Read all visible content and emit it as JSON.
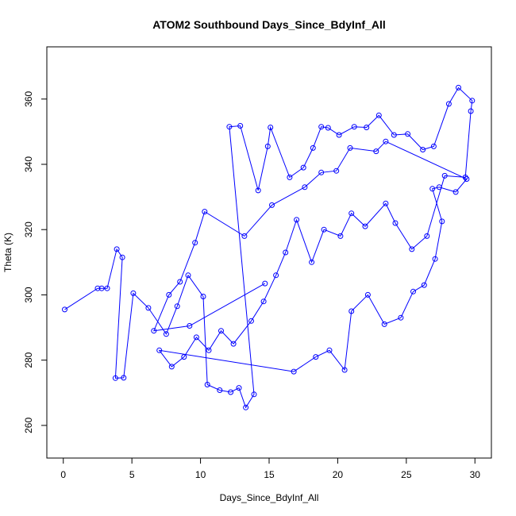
{
  "chart_data": {
    "type": "line",
    "title": "ATOM2 Southbound Days_Since_BdyInf_All",
    "xlabel": "Days_Since_BdyInf_All",
    "ylabel": "Theta (K)",
    "xlim": [
      -1.2,
      31.2
    ],
    "ylim": [
      250,
      376
    ],
    "xticks": [
      0,
      5,
      10,
      15,
      20,
      25,
      30
    ],
    "yticks": [
      260,
      280,
      300,
      320,
      340,
      360
    ],
    "grid": false,
    "legend": "none",
    "color": "#0000ff",
    "marker": "open-circle",
    "line": true,
    "sample_points": [
      [
        0.1,
        295.5
      ],
      [
        2.5,
        302
      ],
      [
        2.8,
        302
      ],
      [
        3.2,
        302
      ],
      [
        3.9,
        314
      ],
      [
        4.3,
        311.5
      ],
      [
        3.8,
        274.5
      ],
      [
        4.4,
        274.6
      ],
      [
        5.1,
        300.5
      ],
      [
        6.2,
        296
      ],
      [
        7.5,
        288
      ],
      [
        8.3,
        296.5
      ],
      [
        9.1,
        306
      ],
      [
        10.2,
        299.5
      ],
      [
        10.5,
        272.5
      ],
      [
        11.4,
        270.8
      ],
      [
        12.2,
        270.2
      ],
      [
        12.8,
        271.5
      ],
      [
        13.3,
        265.5
      ],
      [
        13.9,
        269.5
      ],
      [
        12.1,
        351.5
      ],
      [
        12.9,
        351.8
      ],
      [
        14.2,
        332
      ],
      [
        14.9,
        345.5
      ],
      [
        15.1,
        351.3
      ],
      [
        16.5,
        336
      ],
      [
        17.5,
        339
      ],
      [
        18.2,
        345
      ],
      [
        18.8,
        351.5
      ],
      [
        19.3,
        351.2
      ],
      [
        20.1,
        349
      ],
      [
        21.2,
        351.5
      ],
      [
        22.1,
        351.3
      ],
      [
        23.0,
        355
      ],
      [
        24.1,
        349
      ],
      [
        25.1,
        349.3
      ],
      [
        26.2,
        344.5
      ],
      [
        27.0,
        345.5
      ],
      [
        28.1,
        358.5
      ],
      [
        28.8,
        363.5
      ],
      [
        29.8,
        359.5
      ],
      [
        29.7,
        356.3
      ],
      [
        29.3,
        336
      ],
      [
        27.8,
        336.5
      ],
      [
        26.5,
        318
      ],
      [
        25.4,
        314
      ],
      [
        24.2,
        322
      ],
      [
        23.5,
        328
      ],
      [
        22.0,
        321
      ],
      [
        21.0,
        325
      ],
      [
        20.2,
        318
      ],
      [
        19.0,
        320
      ],
      [
        18.1,
        310
      ],
      [
        17.0,
        323
      ],
      [
        16.2,
        313
      ],
      [
        15.5,
        306
      ],
      [
        14.6,
        298
      ],
      [
        13.7,
        292
      ],
      [
        12.4,
        285
      ],
      [
        11.5,
        289
      ],
      [
        10.6,
        283
      ],
      [
        9.7,
        287
      ],
      [
        8.8,
        281
      ],
      [
        7.9,
        278
      ],
      [
        7.0,
        283
      ],
      [
        16.8,
        276.5
      ],
      [
        18.4,
        281
      ],
      [
        19.4,
        283
      ],
      [
        20.5,
        277
      ],
      [
        21.0,
        295
      ],
      [
        22.2,
        300
      ],
      [
        23.4,
        291
      ],
      [
        24.6,
        293
      ],
      [
        25.5,
        301
      ],
      [
        26.3,
        303
      ],
      [
        27.1,
        311
      ],
      [
        27.6,
        322.5
      ],
      [
        26.9,
        332.5
      ],
      [
        27.4,
        333
      ],
      [
        28.6,
        331.5
      ],
      [
        29.4,
        335.5
      ],
      [
        23.5,
        347
      ],
      [
        22.8,
        344
      ],
      [
        20.9,
        345
      ],
      [
        19.9,
        338
      ],
      [
        18.8,
        337.5
      ],
      [
        17.6,
        333
      ],
      [
        15.2,
        327.5
      ],
      [
        13.2,
        318
      ],
      [
        10.3,
        325.5
      ],
      [
        9.6,
        316
      ],
      [
        8.5,
        304
      ],
      [
        7.7,
        300
      ],
      [
        6.6,
        289
      ],
      [
        9.2,
        290.5
      ],
      [
        14.7,
        303.5
      ]
    ]
  }
}
